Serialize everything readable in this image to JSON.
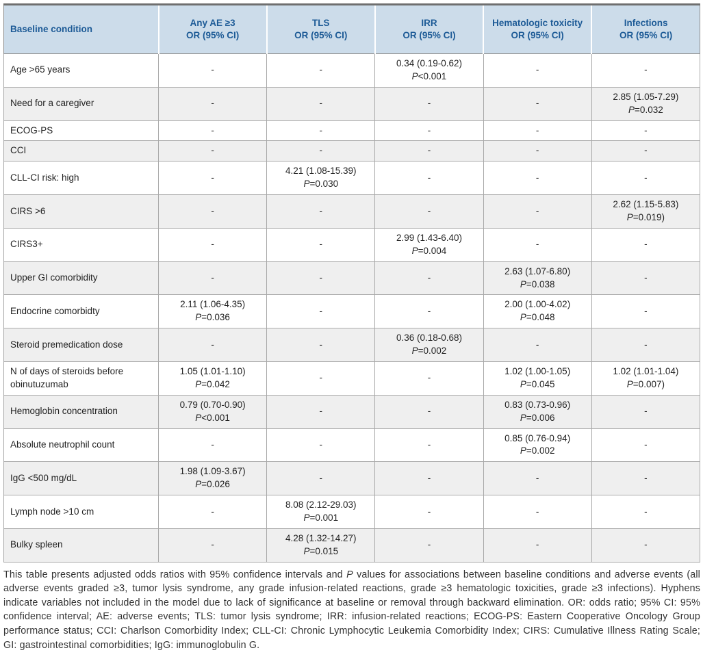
{
  "table": {
    "columns": [
      {
        "label": "Baseline condition"
      },
      {
        "label": "Any AE ≥3\nOR (95% CI)"
      },
      {
        "label": "TLS\nOR (95% CI)"
      },
      {
        "label": "IRR\nOR (95% CI)"
      },
      {
        "label": "Hematologic toxicity\nOR (95% CI)"
      },
      {
        "label": "Infections\nOR (95% CI)"
      }
    ],
    "rows": [
      {
        "condition": "Age >65 years",
        "cells": [
          "-",
          "-",
          "0.34 (0.19-0.62)\nP<0.001",
          "-",
          "-"
        ]
      },
      {
        "condition": "Need for a caregiver",
        "cells": [
          "-",
          "-",
          "-",
          "-",
          "2.85 (1.05-7.29)\nP=0.032"
        ]
      },
      {
        "condition": "ECOG-PS",
        "cells": [
          "-",
          "-",
          "-",
          "-",
          "-"
        ]
      },
      {
        "condition": "CCI",
        "cells": [
          "-",
          "-",
          "-",
          "-",
          "-"
        ]
      },
      {
        "condition": "CLL-CI risk: high",
        "cells": [
          "-",
          "4.21 (1.08-15.39)\nP=0.030",
          "-",
          "-",
          "-"
        ]
      },
      {
        "condition": "CIRS >6",
        "cells": [
          "-",
          "-",
          "-",
          "-",
          "2.62 (1.15-5.83)\nP=0.019)"
        ]
      },
      {
        "condition": "CIRS3+",
        "cells": [
          "-",
          "-",
          "2.99 (1.43-6.40)\nP=0.004",
          "-",
          "-"
        ]
      },
      {
        "condition": "Upper GI comorbidity",
        "cells": [
          "-",
          "-",
          "-",
          "2.63 (1.07-6.80)\nP=0.038",
          "-"
        ]
      },
      {
        "condition": "Endocrine comorbidty",
        "cells": [
          "2.11 (1.06-4.35)\nP=0.036",
          "-",
          "-",
          "2.00 (1.00-4.02)\nP=0.048",
          "-"
        ]
      },
      {
        "condition": "Steroid premedication dose",
        "cells": [
          "-",
          "-",
          "0.36 (0.18-0.68)\nP=0.002",
          "-",
          "-"
        ]
      },
      {
        "condition": "N of days of steroids before obinutuzumab",
        "cells": [
          "1.05 (1.01-1.10)\nP=0.042",
          "-",
          "-",
          "1.02 (1.00-1.05)\nP=0.045",
          "1.02 (1.01-1.04)\nP=0.007)"
        ]
      },
      {
        "condition": "Hemoglobin concentration",
        "cells": [
          "0.79 (0.70-0.90)\nP<0.001",
          "-",
          "-",
          "0.83 (0.73-0.96)\nP=0.006",
          "-"
        ]
      },
      {
        "condition": "Absolute neutrophil count",
        "cells": [
          "-",
          "-",
          "-",
          "0.85 (0.76-0.94)\nP=0.002",
          "-"
        ]
      },
      {
        "condition": "IgG <500 mg/dL",
        "cells": [
          "1.98 (1.09-3.67)\nP=0.026",
          "-",
          "-",
          "-",
          "-"
        ]
      },
      {
        "condition": "Lymph node >10 cm",
        "cells": [
          "-",
          "8.08 (2.12-29.03)\nP=0.001",
          "-",
          "-",
          "-"
        ]
      },
      {
        "condition": "Bulky spleen",
        "cells": [
          "-",
          "4.28 (1.32-14.27)\nP=0.015",
          "-",
          "-",
          "-"
        ]
      }
    ]
  },
  "footnote": "This table presents adjusted odds ratios with 95% confidence intervals and P values for associations between baseline conditions and adverse events (all adverse events graded ≥3, tumor lysis syndrome, any grade infusion-related reactions, grade ≥3 hematologic toxicities, grade ≥3 infections). Hyphens indicate variables not included in the model due to lack of significance at baseline or removal through backward elimination. OR: odds ratio; 95% CI: 95% confidence interval; AE: adverse events; TLS: tumor lysis syndrome; IRR: infusion-related reactions; ECOG-PS: Eastern Cooperative Oncology Group performance status; CCI: Charlson Comorbidity Index; CLL-CI: Chronic Lymphocytic Leukemia Comorbidity Index; CIRS: Cumulative Illness Rating Scale; GI: gastrointestinal comorbidities; IgG: immunoglobulin G.",
  "colors": {
    "header_bg": "#ccdcea",
    "header_text": "#1c5a96",
    "row_alt_bg": "#efefef",
    "border": "#a9a9a9"
  }
}
